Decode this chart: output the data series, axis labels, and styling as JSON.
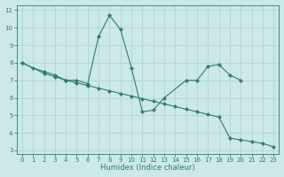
{
  "line_a_x": [
    0,
    1,
    2,
    3,
    4,
    5,
    6,
    7,
    8,
    9,
    10,
    11,
    12,
    13,
    15,
    16,
    17,
    18,
    19,
    20
  ],
  "line_a_y": [
    8.0,
    7.7,
    7.5,
    7.3,
    7.0,
    7.0,
    6.8,
    9.5,
    10.7,
    9.9,
    7.7,
    5.2,
    5.3,
    6.0,
    7.0,
    7.0,
    7.8,
    7.9,
    7.3,
    7.0
  ],
  "line_b_x": [
    0,
    2,
    3,
    4,
    5,
    6,
    7,
    8,
    9,
    10,
    11,
    12,
    13,
    14,
    15,
    16,
    17,
    18,
    19,
    20,
    21,
    22,
    23
  ],
  "line_b_y": [
    8.0,
    7.4,
    7.2,
    7.0,
    6.85,
    6.7,
    6.55,
    6.4,
    6.25,
    6.1,
    5.95,
    5.8,
    5.65,
    5.5,
    5.35,
    5.2,
    5.05,
    4.9,
    3.7,
    3.6,
    3.5,
    3.4,
    3.2
  ],
  "color": "#2e7d6e",
  "bg_color": "#cce8e8",
  "grid_color": "#b0d4d4",
  "xlabel": "Humidex (Indice chaleur)",
  "xlim": [
    -0.5,
    23.5
  ],
  "ylim": [
    2.8,
    11.3
  ],
  "yticks": [
    3,
    4,
    5,
    6,
    7,
    8,
    9,
    10,
    11
  ],
  "xticks": [
    0,
    1,
    2,
    3,
    4,
    5,
    6,
    7,
    8,
    9,
    10,
    11,
    12,
    13,
    14,
    15,
    16,
    17,
    18,
    19,
    20,
    21,
    22,
    23
  ],
  "tick_fontsize": 5,
  "xlabel_fontsize": 6
}
